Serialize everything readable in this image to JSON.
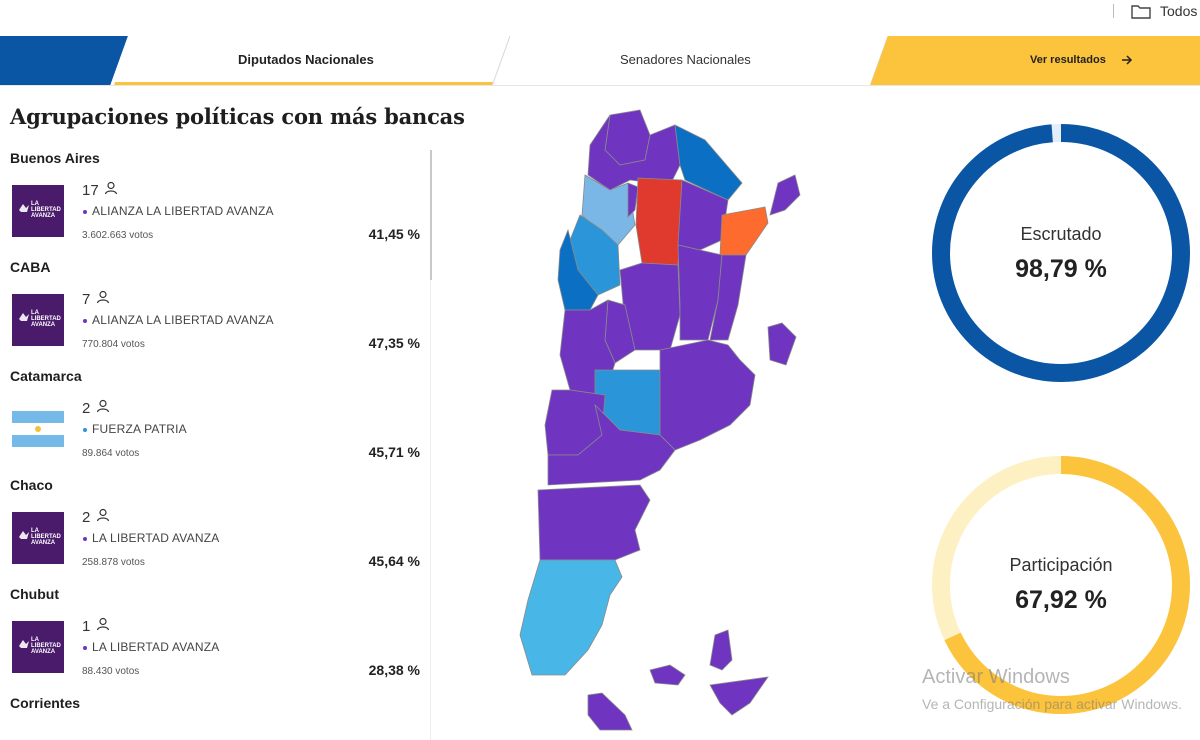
{
  "topbar": {
    "folder_label": "Todos"
  },
  "tabs": {
    "diputados": "Diputados Nacionales",
    "senadores": "Senadores Nacionales",
    "ver_resultados": "Ver resultados"
  },
  "colors": {
    "brand_blue": "#0b56a4",
    "accent_yellow": "#fcc33c",
    "lla_purple": "#6f35c0",
    "fuerza_patria_blue": "#2a95d8"
  },
  "panel": {
    "title": "Agrupaciones políticas con más bancas",
    "provinces": [
      {
        "name": "Buenos Aires",
        "seats": "17",
        "party": "ALIANZA LA LIBERTAD AVANZA",
        "votes": "3.602.663 votos",
        "percent": "41,45 %",
        "logo": "lla-logo"
      },
      {
        "name": "CABA",
        "seats": "7",
        "party": "ALIANZA LA LIBERTAD AVANZA",
        "votes": "770.804 votos",
        "percent": "47,35 %",
        "logo": "lla-logo"
      },
      {
        "name": "Catamarca",
        "seats": "2",
        "party": "FUERZA PATRIA",
        "votes": "89.864 votos",
        "percent": "45,71 %",
        "logo": "argentina-flag-logo"
      },
      {
        "name": "Chaco",
        "seats": "2",
        "party": "LA LIBERTAD AVANZA",
        "votes": "258.878 votos",
        "percent": "45,64 %",
        "logo": "lla-logo"
      },
      {
        "name": "Chubut",
        "seats": "1",
        "party": "LA LIBERTAD AVANZA",
        "votes": "88.430 votos",
        "percent": "28,38 %",
        "logo": "lla-logo"
      },
      {
        "name": "Corrientes"
      }
    ],
    "logo_text": "LA LIBERTAD AVANZA"
  },
  "stats": {
    "escrutado_label": "Escrutado",
    "escrutado_value": "98,79 %",
    "escrutado_fraction": 0.9879,
    "participacion_label": "Participación",
    "participacion_value": "67,92 %",
    "participacion_fraction": 0.6792
  },
  "watermark": {
    "line1": "Activar Windows",
    "line2": "Ve a Configuración para activar Windows."
  }
}
